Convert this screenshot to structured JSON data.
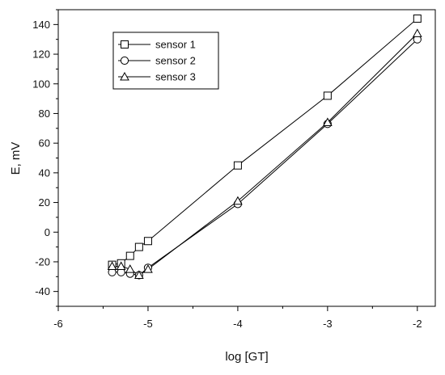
{
  "chart_data": {
    "type": "line",
    "title": "",
    "xlabel": "log [GT]",
    "ylabel": "E, mV",
    "xlim": [
      -6,
      -1.8
    ],
    "ylim": [
      -50,
      150
    ],
    "xticks": [
      -6,
      -5,
      -4,
      -3,
      -2
    ],
    "xtick_labels": [
      "-6",
      "-5",
      "-4",
      "-3",
      "-2"
    ],
    "yticks": [
      -40,
      -20,
      0,
      20,
      40,
      60,
      80,
      100,
      120,
      140
    ],
    "ytick_labels": [
      "-40",
      "-20",
      "0",
      "20",
      "40",
      "60",
      "80",
      "100",
      "120",
      "140"
    ],
    "grid": false,
    "legend_position": "top-left",
    "series": [
      {
        "name": "sensor 1",
        "marker": "square",
        "x": [
          -5.4,
          -5.3,
          -5.2,
          -5.1,
          -5.0,
          -4.0,
          -3.0,
          -2.0
        ],
        "y": [
          -22,
          -21,
          -16,
          -10,
          -6,
          45,
          92,
          144
        ]
      },
      {
        "name": "sensor 2",
        "marker": "circle",
        "x": [
          -5.4,
          -5.3,
          -5.2,
          -5.1,
          -5.0,
          -4.0,
          -3.0,
          -2.0
        ],
        "y": [
          -27,
          -27,
          -28,
          -29,
          -24,
          19,
          73,
          130
        ]
      },
      {
        "name": "sensor 3",
        "marker": "triangle",
        "x": [
          -5.4,
          -5.3,
          -5.2,
          -5.1,
          -5.0,
          -4.0,
          -3.0,
          -2.0
        ],
        "y": [
          -23,
          -23,
          -25,
          -29,
          -25,
          21,
          74,
          134
        ]
      }
    ]
  }
}
